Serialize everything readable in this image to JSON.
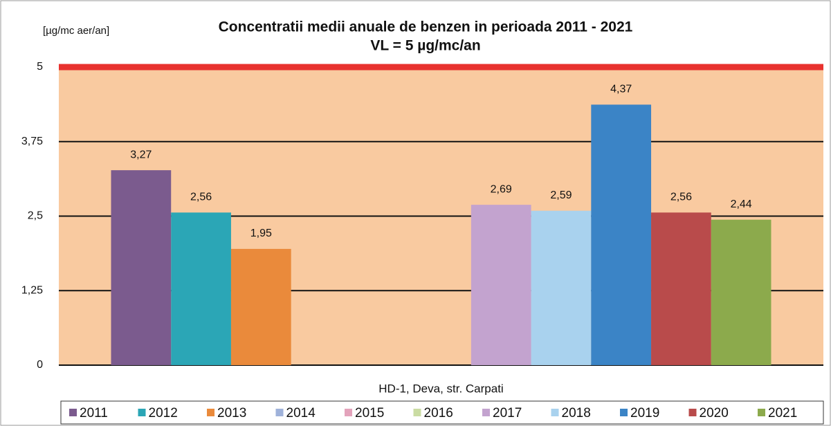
{
  "chart_data": {
    "type": "bar",
    "title": "Concentratii medii anuale de benzen in perioada 2011 - 2021",
    "subtitle": "VL = 5 µg/mc/an",
    "y_label": "[µg/mc aer/an]",
    "categories": [
      "HD-1, Deva, str. Carpati"
    ],
    "series": [
      {
        "name": "2011",
        "color": "#7b5b8e",
        "values": [
          3.27
        ],
        "value_labels": [
          "3,27"
        ]
      },
      {
        "name": "2012",
        "color": "#2ba6b6",
        "values": [
          2.56
        ],
        "value_labels": [
          "2,56"
        ]
      },
      {
        "name": "2013",
        "color": "#ea8a3b",
        "values": [
          1.95
        ],
        "value_labels": [
          "1,95"
        ]
      },
      {
        "name": "2014",
        "color": "#9fb2da",
        "values": [
          null
        ]
      },
      {
        "name": "2015",
        "color": "#e3a3bb",
        "values": [
          null
        ]
      },
      {
        "name": "2016",
        "color": "#cadca3",
        "values": [
          null
        ]
      },
      {
        "name": "2017",
        "color": "#c3a3cf",
        "values": [
          2.69
        ],
        "value_labels": [
          "2,69"
        ]
      },
      {
        "name": "2018",
        "color": "#a9d2ee",
        "values": [
          2.59
        ],
        "value_labels": [
          "2,59"
        ]
      },
      {
        "name": "2019",
        "color": "#3b84c6",
        "values": [
          4.37
        ],
        "value_labels": [
          "4,37"
        ]
      },
      {
        "name": "2020",
        "color": "#b94b4b",
        "values": [
          2.56
        ],
        "value_labels": [
          "2,56"
        ]
      },
      {
        "name": "2021",
        "color": "#8caa4c",
        "values": [
          2.44
        ],
        "value_labels": [
          "2,44"
        ]
      }
    ],
    "ylim": [
      0,
      5
    ],
    "yticks": [
      0,
      {
        "value": 1.25,
        "label": "1,25"
      },
      {
        "value": 2.5,
        "label": "2,5"
      },
      {
        "value": 3.75,
        "label": "3,75"
      },
      5
    ],
    "grid": true,
    "limit_line": {
      "value": 5,
      "color": "#e8322e"
    },
    "legend": "bottom"
  }
}
